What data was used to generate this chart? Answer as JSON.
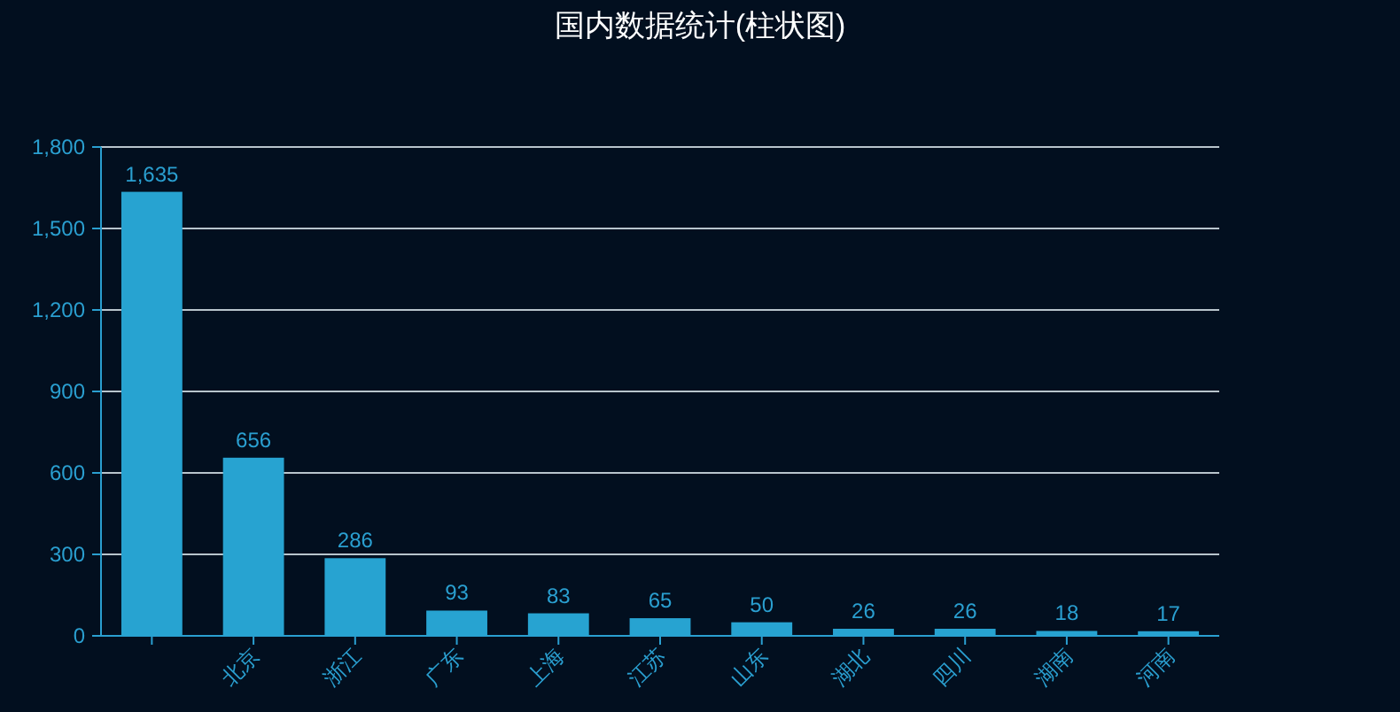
{
  "chart_data": {
    "type": "bar",
    "title": "国内数据统计(柱状图)",
    "categories": [
      null,
      "北京",
      "浙江",
      "广东",
      "上海",
      "江苏",
      "山东",
      "湖北",
      "四川",
      "湖南",
      "河南"
    ],
    "values": [
      1635,
      656,
      286,
      93,
      83,
      65,
      50,
      26,
      26,
      18,
      17
    ],
    "value_labels": [
      "1,635",
      "656",
      "286",
      "93",
      "83",
      "65",
      "50",
      "26",
      "26",
      "18",
      "17"
    ],
    "color": "#27a3d1",
    "ylim": [
      0,
      1800
    ],
    "yticks": [
      0,
      300,
      600,
      900,
      {
        "value": 1200,
        "label": "1,200"
      },
      {
        "value": 1500,
        "label": "1,500"
      },
      {
        "value": 1800,
        "label": "1,800"
      }
    ],
    "grid": "y"
  }
}
